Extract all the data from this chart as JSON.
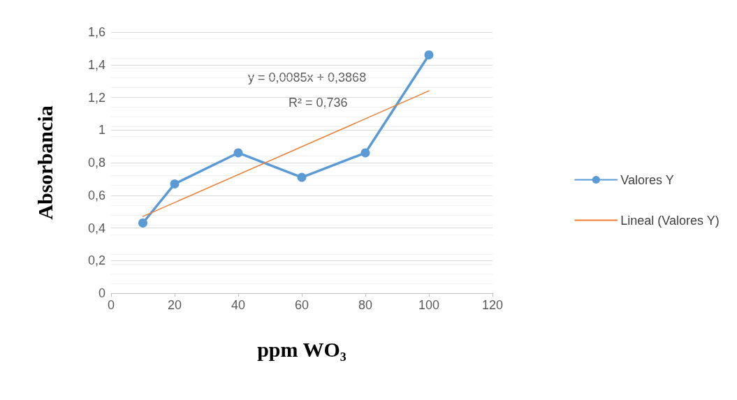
{
  "chart_data": {
    "type": "line",
    "xlabel": "ppm WO₃",
    "ylabel": "Absorbancia",
    "xlim": [
      0,
      120
    ],
    "xticks": [
      0,
      20,
      40,
      60,
      80,
      100,
      120
    ],
    "ylim": [
      0,
      1.6
    ],
    "yticks": [
      0,
      {
        "value": 0.2,
        "label": "0,2"
      },
      {
        "value": 0.4,
        "label": "0,4"
      },
      {
        "value": 0.6,
        "label": "0,6"
      },
      {
        "value": 0.8,
        "label": "0,8"
      },
      1,
      {
        "value": 1.2,
        "label": "1,2"
      },
      {
        "value": 1.4,
        "label": "1,4"
      },
      {
        "value": 1.6,
        "label": "1,6"
      }
    ],
    "grid": "y",
    "legend": "right",
    "marker": "circle",
    "line_style": "solid",
    "annotations": [
      "y = 0,0085x + 0,3868",
      "R² = 0,736"
    ],
    "series": [
      {
        "name": "Valores Y",
        "color": "#5b9bd5",
        "x": [
          10,
          20,
          40,
          60,
          80,
          100
        ],
        "values": [
          0.43,
          0.67,
          0.86,
          0.71,
          0.86,
          1.46
        ]
      },
      {
        "name": "Lineal (Valores Y)",
        "color": "#ed7d31",
        "marker": "none",
        "x": [
          10,
          100
        ],
        "values": [
          0.47,
          1.24
        ]
      }
    ]
  }
}
